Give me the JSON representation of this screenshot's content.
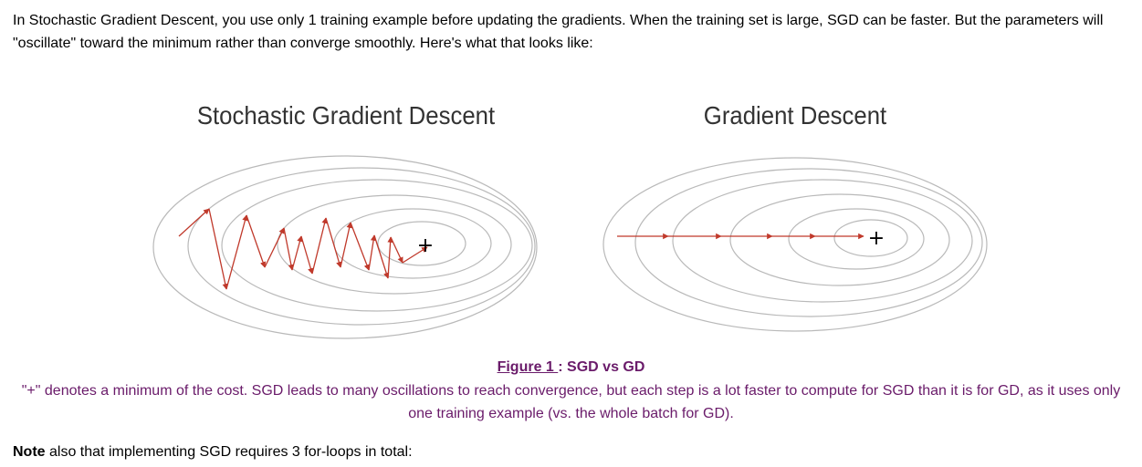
{
  "intro": {
    "text": "In Stochastic Gradient Descent, you use only 1 training example before updating the gradients. When the training set is large, SGD can be faster. But the parameters will \"oscillate\" toward the minimum rather than converge smoothly. Here's what that looks like:"
  },
  "figure": {
    "left_title": "Stochastic Gradient Descent",
    "right_title": "Gradient Descent",
    "minimum_marker": "+",
    "contour_color": "#b9b9b9",
    "path_color": "#c0392b"
  },
  "caption": {
    "figure_label": "Figure 1 ",
    "separator": ": ",
    "figure_title": "SGD vs GD",
    "description": "\"+\" denotes a minimum of the cost. SGD leads to many oscillations to reach convergence, but each step is a lot faster to compute for SGD than it is for GD, as it uses only one training example (vs. the whole batch for GD).",
    "color": "#6a1b6a"
  },
  "note": {
    "bold": "Note",
    "rest": " also that implementing SGD requires 3 for-loops in total:"
  }
}
